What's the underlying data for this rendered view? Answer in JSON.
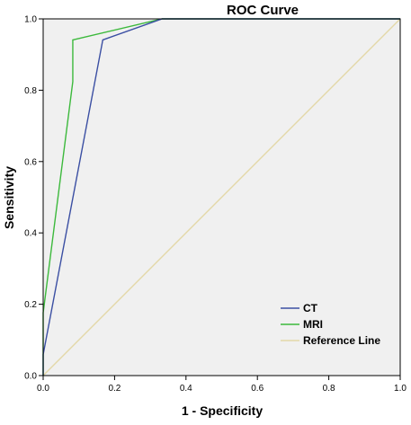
{
  "chart_data": {
    "type": "line",
    "title": "ROC Curve",
    "xlabel": "1 - Specificity",
    "ylabel": "Sensitivity",
    "xlim": [
      0.0,
      1.0
    ],
    "ylim": [
      0.0,
      1.0
    ],
    "xticks": [
      "0.0",
      "0.2",
      "0.4",
      "0.6",
      "0.8",
      "1.0"
    ],
    "yticks": [
      "0.0",
      "0.2",
      "0.4",
      "0.6",
      "0.8",
      "1.0"
    ],
    "grid": false,
    "legend_position": "bottom-right",
    "plot_background": "#f0f0f0",
    "series": [
      {
        "name": "CT",
        "color": "#3b4fa3",
        "x": [
          0.0,
          0.0,
          0.167,
          0.333,
          1.0
        ],
        "y": [
          0.0,
          0.059,
          0.941,
          1.0,
          1.0
        ]
      },
      {
        "name": "MRI",
        "color": "#3cb93c",
        "x": [
          0.0,
          0.0,
          0.083,
          0.083,
          0.333,
          1.0
        ],
        "y": [
          0.0,
          0.176,
          0.824,
          0.941,
          1.0,
          1.0
        ]
      },
      {
        "name": "Reference Line",
        "color": "#e3d8a8",
        "x": [
          0.0,
          1.0
        ],
        "y": [
          0.0,
          1.0
        ]
      }
    ]
  }
}
